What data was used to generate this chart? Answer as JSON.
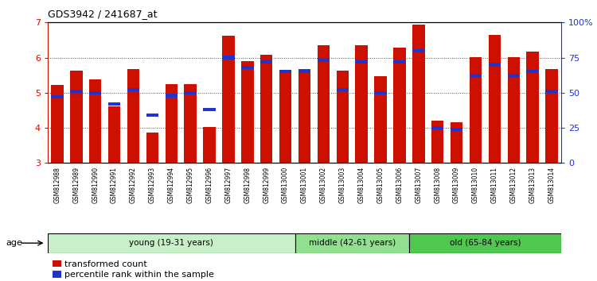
{
  "title": "GDS3942 / 241687_at",
  "samples": [
    "GSM812988",
    "GSM812989",
    "GSM812990",
    "GSM812991",
    "GSM812992",
    "GSM812993",
    "GSM812994",
    "GSM812995",
    "GSM812996",
    "GSM812997",
    "GSM812998",
    "GSM812999",
    "GSM813000",
    "GSM813001",
    "GSM813002",
    "GSM813003",
    "GSM813004",
    "GSM813005",
    "GSM813006",
    "GSM813007",
    "GSM813008",
    "GSM813009",
    "GSM813010",
    "GSM813011",
    "GSM813012",
    "GSM813013",
    "GSM813014"
  ],
  "transformed_count": [
    5.22,
    5.62,
    5.38,
    4.62,
    5.68,
    3.87,
    5.25,
    5.25,
    4.02,
    6.62,
    5.9,
    6.08,
    5.65,
    5.68,
    6.35,
    5.62,
    6.35,
    5.48,
    6.28,
    6.95,
    4.2,
    4.15,
    6.02,
    6.65,
    6.02,
    6.18,
    5.68
  ],
  "percentile_rank": [
    47,
    51,
    50,
    42,
    52,
    34,
    48,
    50,
    38,
    75,
    68,
    72,
    65,
    65,
    73,
    52,
    72,
    50,
    72,
    80,
    25,
    24,
    62,
    70,
    62,
    65,
    51
  ],
  "groups": [
    {
      "label": "young (19-31 years)",
      "start": 0,
      "end": 13,
      "color": "#c8f0c8"
    },
    {
      "label": "middle (42-61 years)",
      "start": 13,
      "end": 19,
      "color": "#90e090"
    },
    {
      "label": "old (65-84 years)",
      "start": 19,
      "end": 27,
      "color": "#50c850"
    }
  ],
  "ylim": [
    3.0,
    7.0
  ],
  "y2lim": [
    0,
    100
  ],
  "yticks": [
    3,
    4,
    5,
    6,
    7
  ],
  "y2ticks": [
    0,
    25,
    50,
    75,
    100
  ],
  "bar_color": "#cc1100",
  "percentile_color": "#2233cc",
  "background_color": "#ffffff",
  "plot_bg_color": "#ffffff",
  "age_label": "age",
  "legend_items": [
    "transformed count",
    "percentile rank within the sample"
  ],
  "tick_bg_color": "#c8c8c8"
}
